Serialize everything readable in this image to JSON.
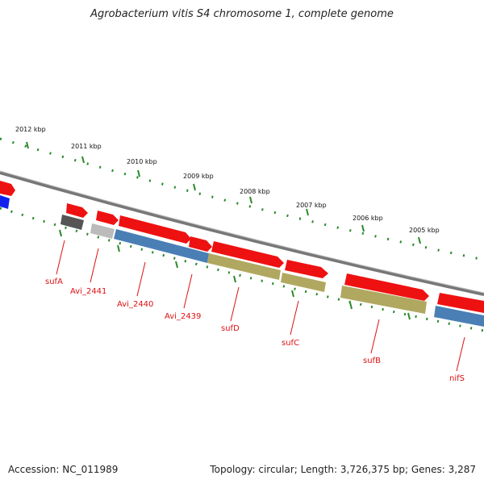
{
  "title": "Agrobacterium vitis S4 chromosome 1, complete genome",
  "footer": {
    "accession": "Accession: NC_011989",
    "summary": "Topology: circular; Length: 3,726,375 bp; Genes: 3,287"
  },
  "scale_labels": [
    "2012 kbp",
    "2011 kbp",
    "2010 kbp",
    "2009 kbp",
    "2008 kbp",
    "2007 kbp",
    "2006 kbp",
    "2005 kbp"
  ],
  "gene_labels": [
    "sufA",
    "Avi_2441",
    "Avi_2440",
    "Avi_2439",
    "sufD",
    "sufC",
    "sufB",
    "nifS"
  ],
  "colors": {
    "forward_feature": "#ee1111",
    "grey_feature": "#555555",
    "light_grey_feature": "#bbbbbb",
    "blue_feature": "#4a7fb5",
    "olive_feature": "#b0a860",
    "backbone": "#777777",
    "ticks": "#2a8a2a",
    "labels": "#dd1111"
  }
}
